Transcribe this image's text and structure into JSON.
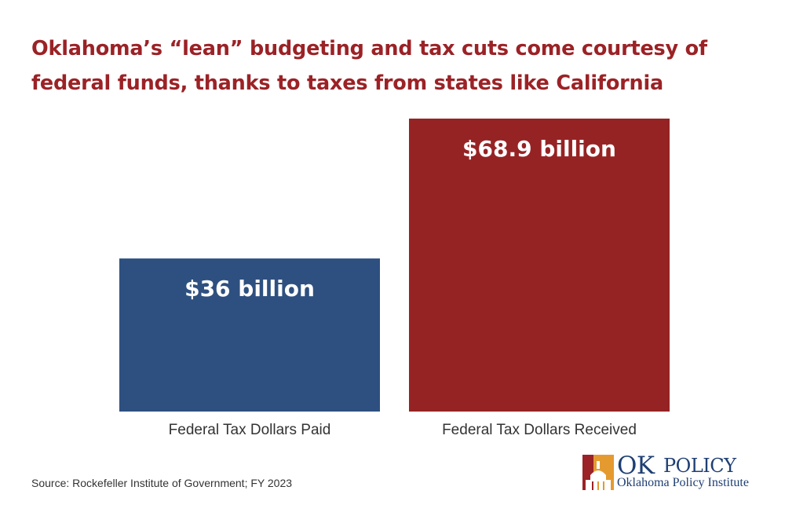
{
  "header": {
    "title": "Oklahoma’s “lean” budgeting and tax cuts come courtesy of federal funds, thanks to taxes from states like California"
  },
  "chart_data": {
    "type": "bar",
    "title": "Oklahoma’s “lean” budgeting and tax cuts come courtesy of federal funds, thanks to taxes from states like California",
    "categories": [
      "Federal Tax Dollars Paid",
      "Federal Tax Dollars Received"
    ],
    "values": [
      36,
      68.9
    ],
    "value_labels": [
      "$36 billion",
      "$68.9 billion"
    ],
    "colors": [
      "#2e5080",
      "#962324"
    ],
    "unit": "billion dollars",
    "xlabel": "",
    "ylabel": "",
    "ylim": [
      0,
      68.9
    ],
    "grid": false,
    "legend": "none"
  },
  "footer": {
    "source": "Source: Rockefeller Institute of Government; FY 2023"
  },
  "logo": {
    "ok": "OK",
    "policy": "POLICY",
    "subtitle": "Oklahoma Policy Institute",
    "colors": {
      "navy": "#1f3f73",
      "orange": "#e59a2f",
      "red": "#9b2226"
    }
  }
}
